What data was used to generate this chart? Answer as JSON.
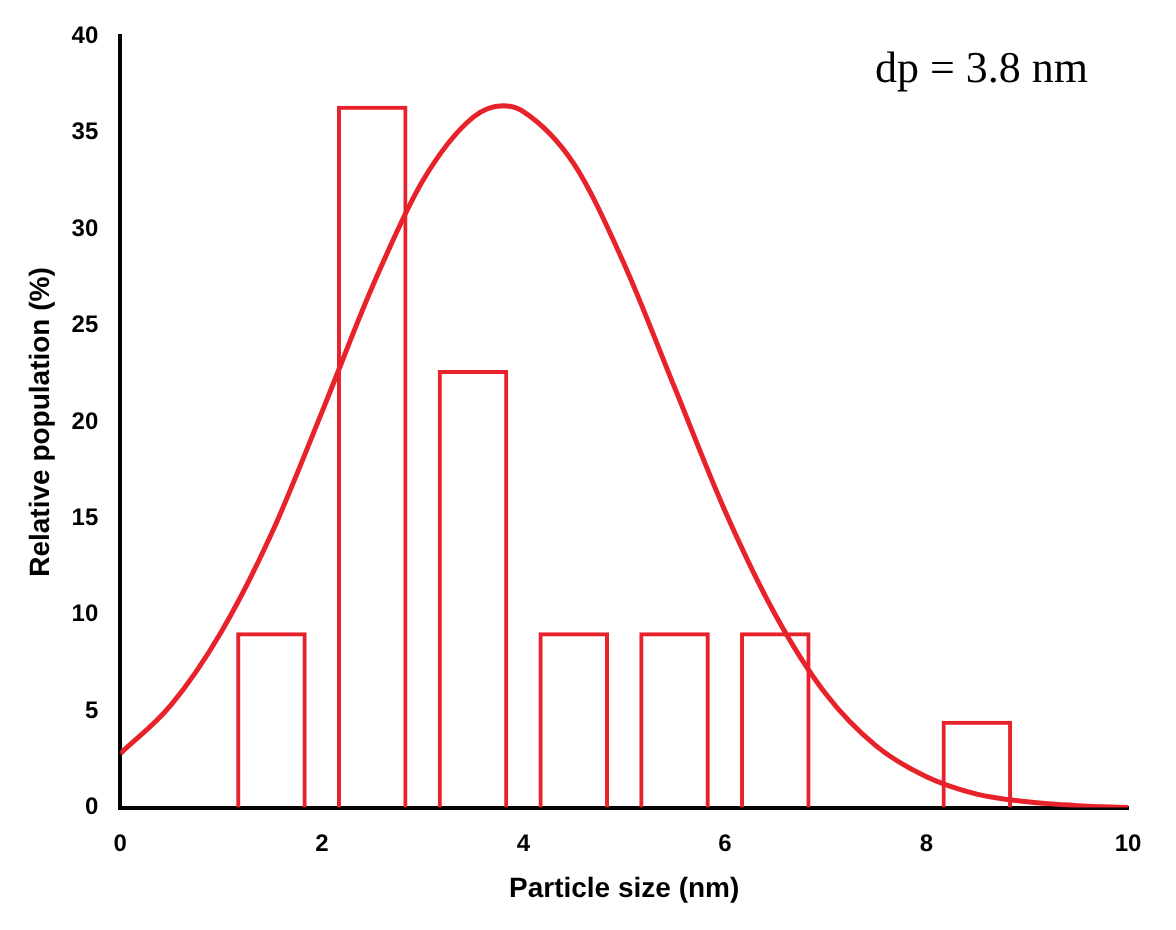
{
  "chart_data": {
    "type": "bar",
    "xlabel": "Particle size (nm)",
    "ylabel": "Relative population (%)",
    "annotations": [
      "dp = 3.8 nm"
    ],
    "x": [
      1.5,
      2.5,
      3.5,
      4.5,
      5.5,
      6.5,
      8.5
    ],
    "values": [
      9.1,
      36.4,
      22.7,
      9.1,
      9.1,
      9.1,
      4.5
    ],
    "color": "#e8222a",
    "series": [
      {
        "type": "line",
        "color": "#e8222a",
        "x": [
          0,
          0.5,
          1,
          1.5,
          2,
          2.5,
          3,
          3.5,
          3.8,
          4,
          4.5,
          5,
          5.5,
          6,
          6.5,
          7,
          7.5,
          8,
          8.5,
          9,
          9.5,
          10
        ],
        "values": [
          2.8,
          5.3,
          9.1,
          14.2,
          20.5,
          27.0,
          32.5,
          35.8,
          36.4,
          36.1,
          33.4,
          28.2,
          21.8,
          15.4,
          10.0,
          5.9,
          3.2,
          1.6,
          0.7,
          0.3,
          0.1,
          0.0
        ]
      }
    ],
    "xlim": [
      0,
      10
    ],
    "xticks": [
      0,
      2,
      4,
      6,
      8,
      10
    ],
    "ylim": [
      0,
      40
    ],
    "yticks": [
      0,
      5,
      10,
      15,
      20,
      25,
      30,
      35,
      40
    ],
    "grid": false,
    "legend": false,
    "marker": "none"
  }
}
